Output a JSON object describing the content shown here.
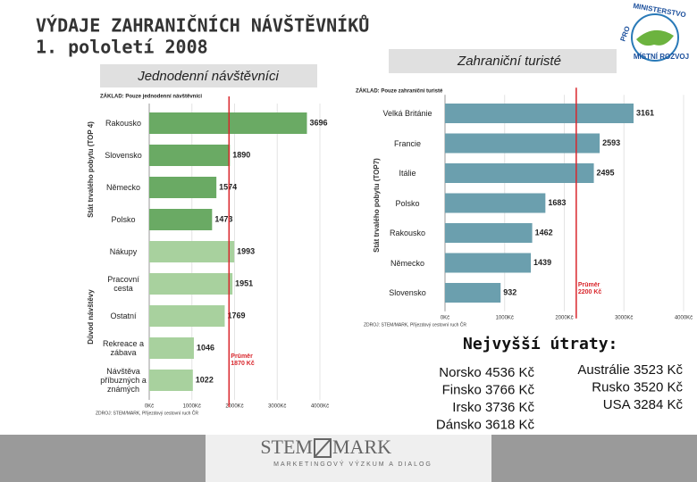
{
  "header": {
    "title": "VÝDAJE ZAHRANIČNÍCH NÁVŠTĚVNÍKŮ",
    "subtitle": "1. pololetí 2008"
  },
  "logo": {
    "top": "MINISTERSTVO",
    "left": "PRO",
    "bottom": "MÍSTNÍ ROZVOJ"
  },
  "chart_data": [
    {
      "type": "bar",
      "orientation": "horizontal",
      "title": "Jednodenní návštěvníci",
      "subtitle": "ZÁKLAD: Pouze jednodenní návštěvníci",
      "group_labels": [
        "Stát trvalého pobytu (TOP 4)",
        "Důvod návštěvy"
      ],
      "categories": [
        "Rakousko",
        "Slovensko",
        "Německo",
        "Polsko",
        "Nákupy",
        "Pracovní cesta",
        "Ostatní",
        "Rekreace a zábava",
        "Návštěva příbuzných a známých"
      ],
      "values": [
        3696,
        1890,
        1574,
        1473,
        1993,
        1951,
        1769,
        1046,
        1022
      ],
      "colors": [
        "#6aaa64",
        "#6aaa64",
        "#6aaa64",
        "#6aaa64",
        "#a8d19e",
        "#a8d19e",
        "#a8d19e",
        "#a8d19e",
        "#a8d19e"
      ],
      "xlim": [
        0,
        4000
      ],
      "xticks": [
        {
          "value": 0,
          "label": "0Kč"
        },
        {
          "value": 1000,
          "label": "1000Kč"
        },
        {
          "value": 2000,
          "label": "2000Kč"
        },
        {
          "value": 3000,
          "label": "3000Kč"
        },
        {
          "value": 4000,
          "label": "4000Kč"
        }
      ],
      "reference": {
        "value": 1870,
        "label": "Průměr 1870 Kč",
        "color": "#d9262c"
      },
      "note": "ZDROJ: STEM/MARK, Příjezdový cestovní ruch ČR"
    },
    {
      "type": "bar",
      "orientation": "horizontal",
      "title": "Zahraniční turisté",
      "subtitle": "ZÁKLAD: Pouze zahraniční turisté",
      "ylabel": "Stát trvalého pobytu (TOP7)",
      "categories": [
        "Velká Británie",
        "Francie",
        "Itálie",
        "Polsko",
        "Rakousko",
        "Německo",
        "Slovensko"
      ],
      "values": [
        3161,
        2593,
        2495,
        1683,
        1462,
        1439,
        932
      ],
      "color": "#6b9fae",
      "xlim": [
        0,
        4000
      ],
      "xticks": [
        {
          "value": 0,
          "label": "0Kč"
        },
        {
          "value": 1000,
          "label": "1000Kč"
        },
        {
          "value": 2000,
          "label": "2000Kč"
        },
        {
          "value": 3000,
          "label": "3000Kč"
        },
        {
          "value": 4000,
          "label": "4000Kč"
        }
      ],
      "reference": {
        "value": 2200,
        "label": "Průměr 2200 Kč",
        "color": "#d9262c"
      },
      "note": "ZDROJ: STEM/MARK, Příjezdový cestovní ruch ČR"
    }
  ],
  "top_spending": {
    "title": "Nejvyšší útraty:",
    "left": [
      "Norsko 4536 Kč",
      "Finsko 3766 Kč",
      "Irsko 3736 Kč",
      "Dánsko 3618 Kč"
    ],
    "right": [
      "Austrálie 3523 Kč",
      "Rusko 3520 Kč",
      "USA 3284 Kč"
    ]
  },
  "footer": {
    "brand_left": "STEM",
    "brand_right": "MARK",
    "tagline": "MARKETINGOVÝ VÝZKUM A DIALOG"
  }
}
